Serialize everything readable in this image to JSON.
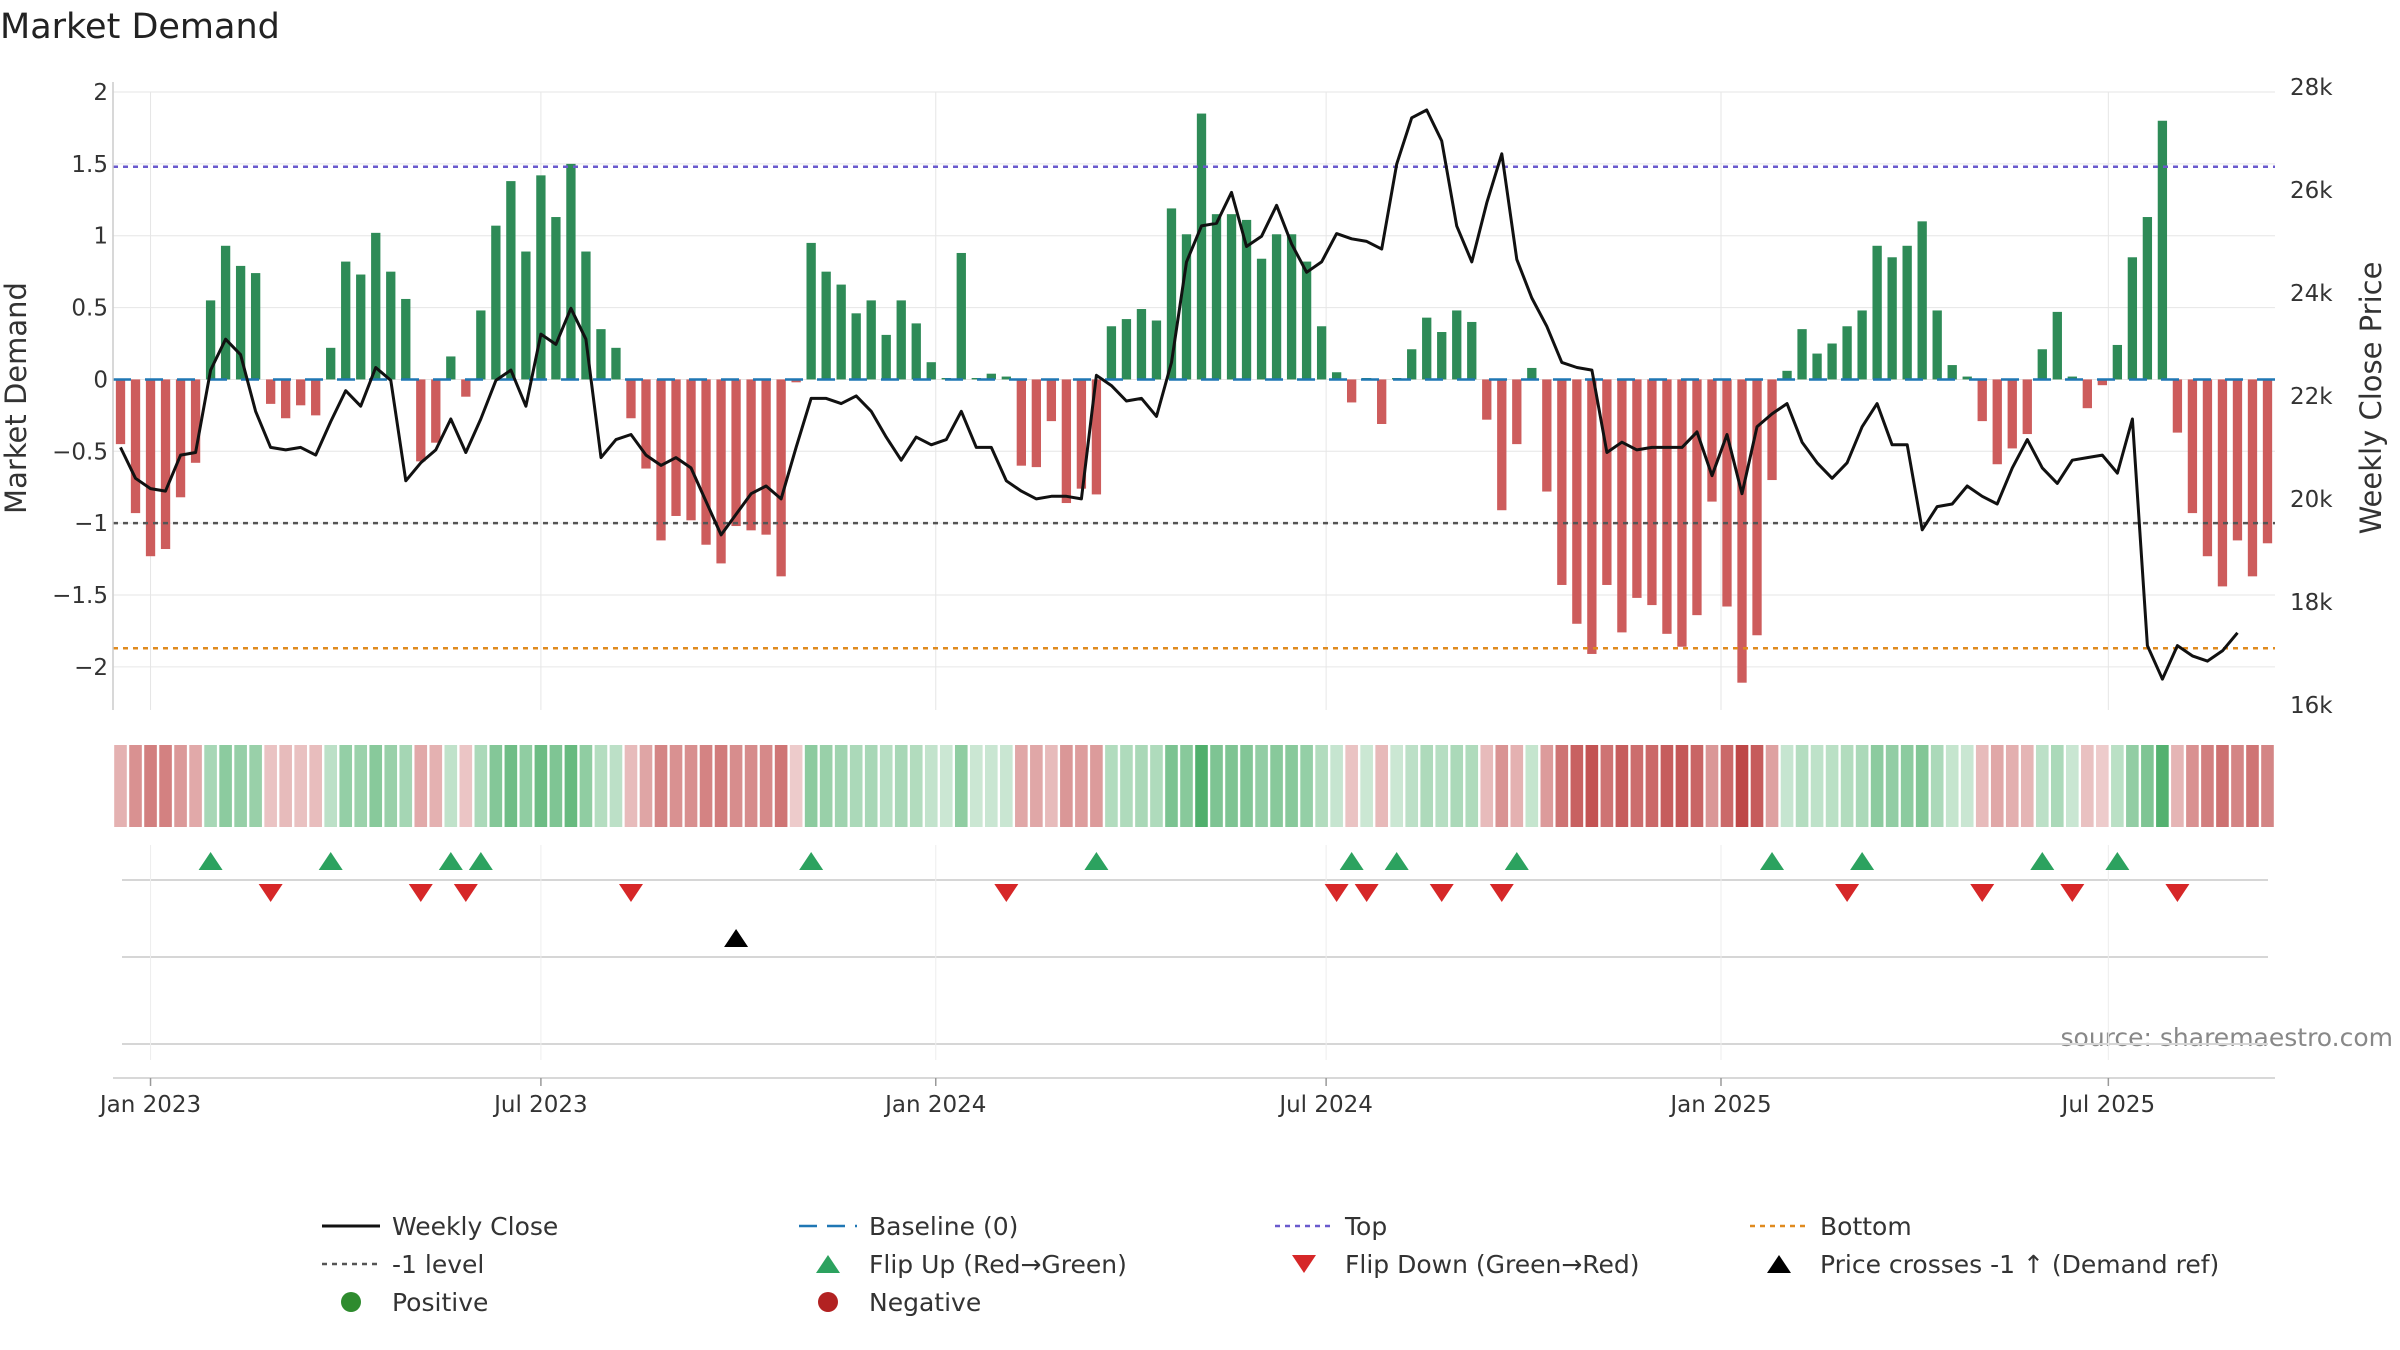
{
  "chart_data": {
    "type": "bar",
    "title": "Market Demand",
    "ylabel": "Market Demand",
    "y2label": "Weekly Close Price",
    "ylim": [
      -2.3,
      2.0
    ],
    "y2lim": [
      15900,
      27900
    ],
    "yticks": [
      2,
      1.5,
      1,
      0.5,
      0,
      -0.5,
      -1,
      -1.5,
      -2
    ],
    "ytick_labels": [
      "2",
      "1.5",
      "1",
      "0.5",
      "0",
      "−0.5",
      "−1",
      "−1.5",
      "−2"
    ],
    "y2ticks": [
      28000,
      26000,
      24000,
      22000,
      20000,
      18000,
      16000
    ],
    "y2tick_labels": [
      "28k",
      "26k",
      "24k",
      "22k",
      "20k",
      "18k",
      "16k"
    ],
    "top_level": 1.48,
    "bottom_level": -1.87,
    "minus_one_level": -1.0,
    "x_start_week": "2022-12-19",
    "xticks": [
      {
        "label": "Jan 2023",
        "week": 2
      },
      {
        "label": "Jul 2023",
        "week": 28
      },
      {
        "label": "Jan 2024",
        "week": 54.3
      },
      {
        "label": "Jul 2024",
        "week": 80.3
      },
      {
        "label": "Jan 2025",
        "week": 106.6
      },
      {
        "label": "Jul 2025",
        "week": 132.4
      }
    ],
    "demand": [
      -0.45,
      -0.93,
      -1.23,
      -1.18,
      -0.82,
      -0.58,
      0.55,
      0.93,
      0.79,
      0.74,
      -0.17,
      -0.27,
      -0.18,
      -0.25,
      0.22,
      0.82,
      0.73,
      1.02,
      0.75,
      0.56,
      -0.57,
      -0.44,
      0.16,
      -0.12,
      0.48,
      1.07,
      1.38,
      0.89,
      1.42,
      1.13,
      1.5,
      0.89,
      0.35,
      0.22,
      -0.27,
      -0.62,
      -1.12,
      -0.95,
      -0.98,
      -1.15,
      -1.28,
      -1.02,
      -1.05,
      -1.08,
      -1.37,
      -0.02,
      0.95,
      0.75,
      0.66,
      0.46,
      0.55,
      0.31,
      0.55,
      0.39,
      0.12,
      0.01,
      0.88,
      0.01,
      0.04,
      0.02,
      -0.6,
      -0.61,
      -0.29,
      -0.86,
      -0.76,
      -0.8,
      0.37,
      0.42,
      0.49,
      0.41,
      1.19,
      1.01,
      1.85,
      1.15,
      1.15,
      1.11,
      0.84,
      1.01,
      1.01,
      0.82,
      0.37,
      0.05,
      -0.16,
      0.01,
      -0.31,
      0.01,
      0.21,
      0.43,
      0.33,
      0.48,
      0.4,
      -0.28,
      -0.91,
      -0.45,
      0.08,
      -0.78,
      -1.43,
      -1.7,
      -1.91,
      -1.43,
      -1.76,
      -1.52,
      -1.57,
      -1.77,
      -1.86,
      -1.64,
      -0.85,
      -1.58,
      -2.11,
      -1.78,
      -0.7,
      0.06,
      0.35,
      0.18,
      0.25,
      0.37,
      0.48,
      0.93,
      0.85,
      0.93,
      1.1,
      0.48,
      0.1,
      0.02,
      -0.29,
      -0.59,
      -0.48,
      -0.38,
      0.21,
      0.47,
      0.02,
      -0.2,
      -0.04,
      0.24,
      0.85,
      1.13,
      1.8,
      -0.37,
      -0.93,
      -1.23,
      -1.44,
      -1.12,
      -1.37,
      -1.14
    ],
    "close": [
      21000,
      20400,
      20200,
      20150,
      20850,
      20900,
      22500,
      23100,
      22800,
      21700,
      21000,
      20950,
      21000,
      20850,
      21500,
      22100,
      21800,
      22550,
      22300,
      20350,
      20700,
      20950,
      21550,
      20900,
      21550,
      22300,
      22500,
      21800,
      23200,
      23000,
      23700,
      23100,
      20800,
      21150,
      21250,
      20850,
      20650,
      20800,
      20600,
      19950,
      19300,
      19700,
      20100,
      20250,
      20000,
      21000,
      21950,
      21950,
      21850,
      22000,
      21700,
      21200,
      20750,
      21200,
      21050,
      21150,
      21700,
      21000,
      21000,
      20350,
      20150,
      20000,
      20050,
      20050,
      20000,
      22400,
      22200,
      21900,
      21950,
      21600,
      22650,
      24600,
      25300,
      25350,
      25950,
      24900,
      25100,
      25700,
      24950,
      24400,
      24600,
      25150,
      25050,
      25000,
      24850,
      26500,
      27400,
      27550,
      26950,
      25300,
      24600,
      25750,
      26700,
      24650,
      23900,
      23350,
      22650,
      22550,
      22500,
      20900,
      21100,
      20950,
      21000,
      21000,
      21000,
      21300,
      20450,
      21250,
      20100,
      21400,
      21650,
      21850,
      21100,
      20700,
      20400,
      20700,
      21400,
      21850,
      21050,
      21050,
      19400,
      19850,
      19900,
      20250,
      20050,
      19900,
      20600,
      21150,
      20600,
      20300,
      20750,
      20800,
      20850,
      20500,
      21550,
      17150,
      16500,
      17150,
      16950,
      16850,
      17050,
      17400
    ],
    "color_strip_note": "per-week shaded strip mirrors demand sign and magnitude",
    "flip_up_weeks": [
      6,
      14,
      22,
      24,
      46,
      65,
      82,
      85,
      93,
      110,
      116,
      128,
      133
    ],
    "flip_down_weeks": [
      10,
      20,
      23,
      34,
      59,
      81,
      83,
      88,
      92,
      115,
      124,
      130,
      137
    ],
    "price_cross_weeks": [
      41
    ],
    "source": "source: sharemaestro.com",
    "legend": [
      {
        "key": "weekly-close",
        "label": "Weekly Close",
        "color": "#111111"
      },
      {
        "key": "baseline",
        "label": "Baseline (0)",
        "color": "#1f77b4"
      },
      {
        "key": "top",
        "label": "Top",
        "color": "#6a5acd"
      },
      {
        "key": "bottom",
        "label": "Bottom",
        "color": "#e08a1e"
      },
      {
        "key": "minus-one",
        "label": "-1 level",
        "color": "#555555"
      },
      {
        "key": "flip-up",
        "label": "Flip Up (Red→Green)",
        "color": "#2ca25f"
      },
      {
        "key": "flip-down",
        "label": "Flip Down (Green→Red)",
        "color": "#d62728"
      },
      {
        "key": "price-cross",
        "label": "Price crosses -1 ↑ (Demand ref)",
        "color": "#000000"
      },
      {
        "key": "positive",
        "label": "Positive",
        "color": "#2e8b2e"
      },
      {
        "key": "negative",
        "label": "Negative",
        "color": "#b22222"
      }
    ],
    "colors": {
      "positive_bar": "#2e8b57",
      "negative_bar": "#cd5c5c",
      "grid": "#e6e6e6",
      "axis": "#cccccc"
    }
  }
}
